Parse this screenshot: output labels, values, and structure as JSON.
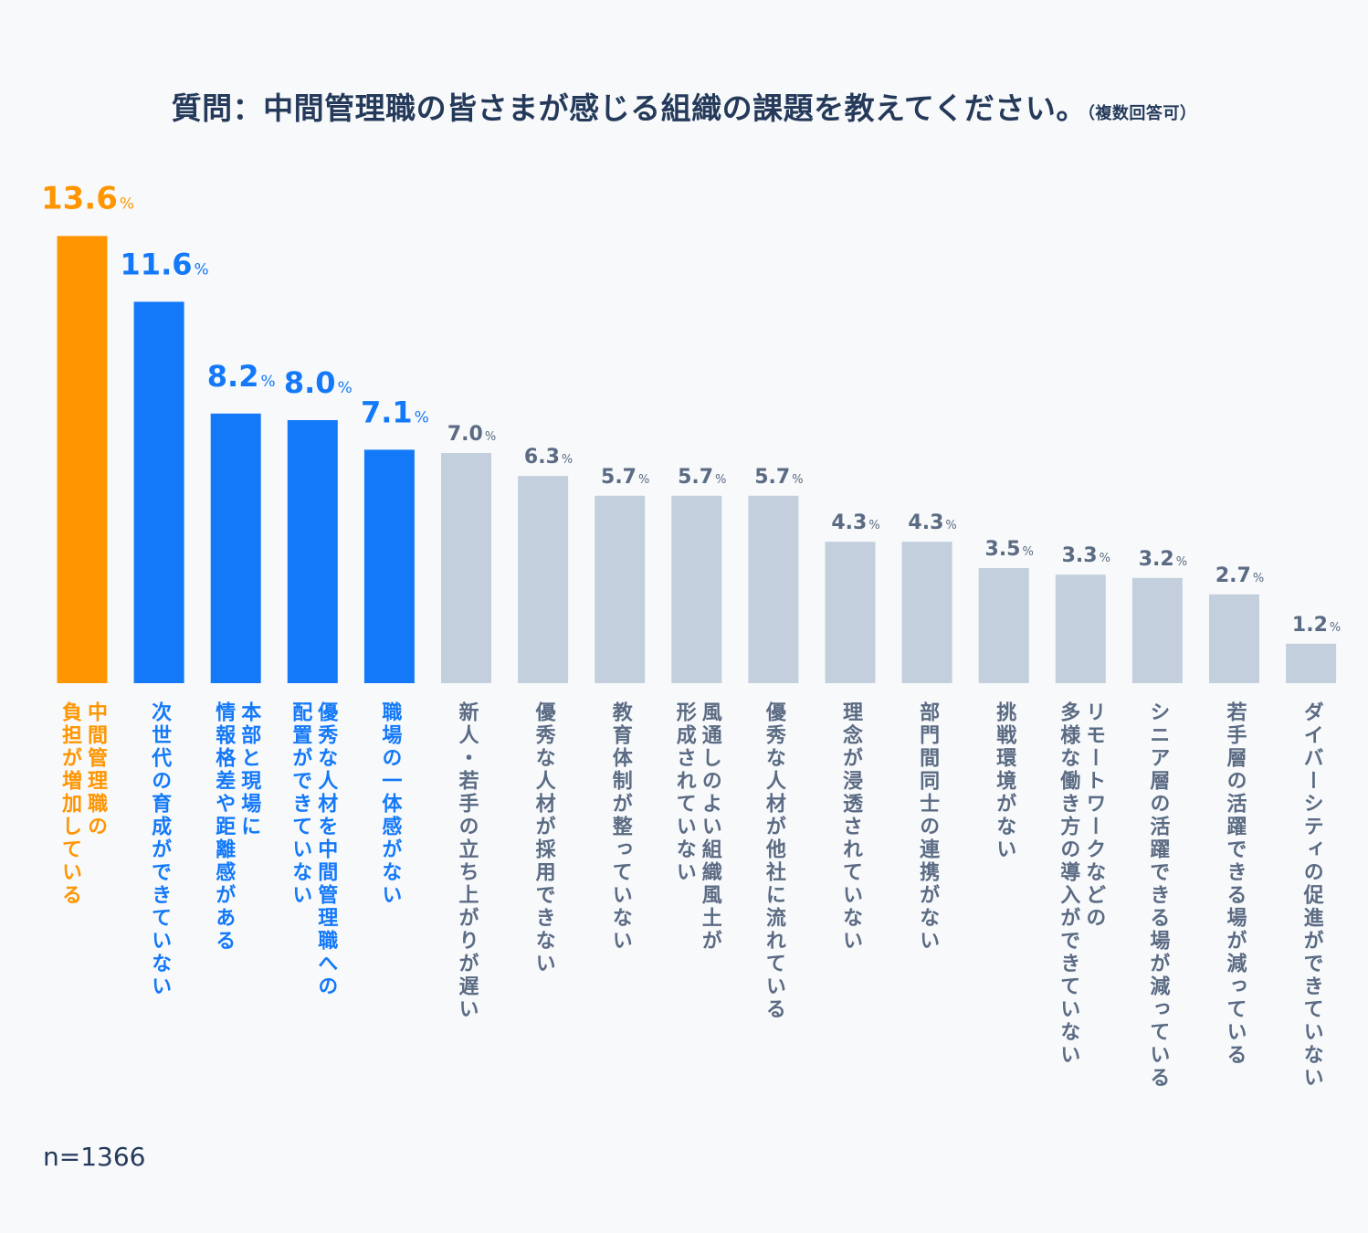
{
  "title": {
    "main": "質問：中間管理職の皆さまが感じる組織の課題を教えてください。",
    "note": "（複数回答可）"
  },
  "sample_size": "n=1366",
  "colors": {
    "highlight": "#ff9500",
    "accent": "#1479f9",
    "muted_bar": "#c3cfdd",
    "muted_text": "#5b6b83",
    "title": "#253a5a",
    "background": "#f7f9fb"
  },
  "chart_data": {
    "type": "bar",
    "title": "質問：中間管理職の皆さまが感じる組織の課題を教えてください。（複数回答可）",
    "xlabel": "",
    "ylabel": "",
    "unit": "%",
    "ylim": [
      0,
      14
    ],
    "grid": false,
    "legend": "none",
    "categories": [
      "中間管理職の負担が増加している",
      "次世代の育成ができていない",
      "本部と現場に情報格差や距離感がある",
      "優秀な人材を中間管理職への配置ができていない",
      "職場の一体感がない",
      "新人・若手の立ち上がりが遅い",
      "優秀な人材が採用できない",
      "教育体制が整っていない",
      "風通しのよい組織風土が形成されていない",
      "優秀な人材が他社に流れている",
      "理念が浸透されていない",
      "部門間同士の連携がない",
      "挑戦環境がない",
      "リモートワークなどの多様な働き方の導入ができていない",
      "シニア層の活躍できる場が減っている",
      "若手層の活躍できる場が減っている",
      "ダイバーシティの促進ができていない"
    ],
    "label_lines": [
      [
        "中間管理職の",
        "負担が増加している"
      ],
      [
        "次世代の育成ができていない"
      ],
      [
        "本部と現場に",
        "情報格差や距離感がある"
      ],
      [
        "優秀な人材を中間管理職への",
        "配置ができていない"
      ],
      [
        "職場の一体感がない"
      ],
      [
        "新人・若手の立ち上がりが遅い"
      ],
      [
        "優秀な人材が採用できない"
      ],
      [
        "教育体制が整っていない"
      ],
      [
        "風通しのよい組織風土が",
        "形成されていない"
      ],
      [
        "優秀な人材が他社に流れている"
      ],
      [
        "理念が浸透されていない"
      ],
      [
        "部門間同士の連携がない"
      ],
      [
        "挑戦環境がない"
      ],
      [
        "リモートワークなどの",
        "多様な働き方の導入ができていない"
      ],
      [
        "シニア層の活躍できる場が減っている"
      ],
      [
        "若手層の活躍できる場が減っている"
      ],
      [
        "ダイバーシティの促進ができていない"
      ]
    ],
    "values": [
      13.6,
      11.6,
      8.2,
      8.0,
      7.1,
      7.0,
      6.3,
      5.7,
      5.7,
      5.7,
      4.3,
      4.3,
      3.5,
      3.3,
      3.2,
      2.7,
      1.2
    ],
    "value_labels": [
      "13.6",
      "11.6",
      "8.2",
      "8.0",
      "7.1",
      "7.0",
      "6.3",
      "5.7",
      "5.7",
      "5.7",
      "4.3",
      "4.3",
      "3.5",
      "3.3",
      "3.2",
      "2.7",
      "1.2"
    ],
    "highlight_groups": [
      "highlight",
      "accent",
      "accent",
      "accent",
      "accent",
      "muted",
      "muted",
      "muted",
      "muted",
      "muted",
      "muted",
      "muted",
      "muted",
      "muted",
      "muted",
      "muted",
      "muted"
    ]
  }
}
